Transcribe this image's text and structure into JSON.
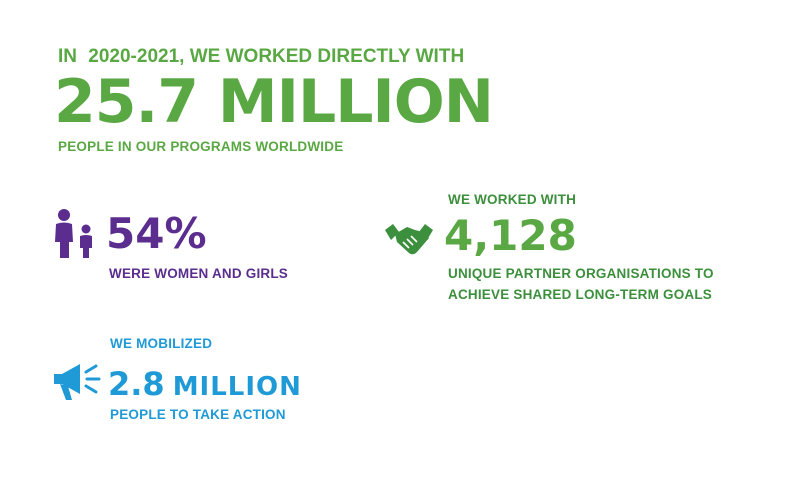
{
  "headline": {
    "intro_prefix": "IN",
    "intro_year": "2020-2021,",
    "intro_suffix": "WE WORKED DIRECTLY WITH",
    "big_number": "25.7 MILLION",
    "sub": "PEOPLE IN OUR PROGRAMS WORLDWIDE"
  },
  "women": {
    "icon": "woman-girl-icon",
    "percent": "54%",
    "label": "WERE WOMEN AND GIRLS"
  },
  "partners": {
    "intro": "WE WORKED WITH",
    "icon": "handshake-icon",
    "number": "4,128",
    "label_line1": "UNIQUE PARTNER ORGANISATIONS TO",
    "label_line2": "ACHIEVE SHARED LONG-TERM GOALS"
  },
  "mobilized": {
    "intro": "WE MOBILIZED",
    "icon": "megaphone-icon",
    "number": "2.8",
    "unit": "MILLION",
    "label": "PEOPLE TO TAKE ACTION"
  },
  "colors": {
    "green": "#5aa843",
    "dark_green": "#3c8f3c",
    "purple": "#5b2d8e",
    "blue": "#1f9ad6"
  }
}
